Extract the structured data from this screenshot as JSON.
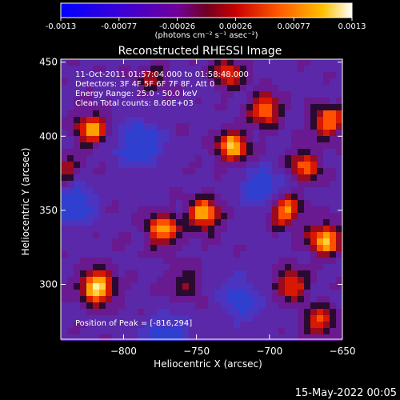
{
  "colorbar": {
    "ticks": [
      "-0.0013",
      "-0.00077",
      "-0.00026",
      "0.00026",
      "0.00077",
      "0.0013"
    ],
    "units": "(photons cm⁻² s⁻¹ asec⁻²)"
  },
  "title": "Reconstructed RHESSI Image",
  "info": {
    "line1": "11-Oct-2011 01:57:04.000 to 01:58:48.000",
    "line2": "Detectors: 3F 4F 5F 6F 7F 8F, Att 0",
    "line3": "Energy Range: 25.0 - 50.0 keV",
    "line4": "Clean    Total counts: 8.60E+03"
  },
  "peak_label": "Position of Peak = [-816,294]",
  "axes": {
    "xlabel": "Heliocentric X (arcsec)",
    "ylabel": "Heliocentric Y (arcsec)",
    "xticks": [
      -800,
      -750,
      -700,
      -650
    ],
    "yticks": [
      300,
      350,
      400,
      450
    ],
    "xlim": [
      -843,
      -650
    ],
    "ylim": [
      263,
      452
    ]
  },
  "hotspots": [
    {
      "x": -818,
      "y": 298,
      "amp": 1.0
    },
    {
      "x": -822,
      "y": 405,
      "amp": 0.75
    },
    {
      "x": -725,
      "y": 393,
      "amp": 0.85
    },
    {
      "x": -703,
      "y": 418,
      "amp": 0.7
    },
    {
      "x": -773,
      "y": 337,
      "amp": 0.8
    },
    {
      "x": -745,
      "y": 347,
      "amp": 0.8
    },
    {
      "x": -690,
      "y": 350,
      "amp": 0.75
    },
    {
      "x": -676,
      "y": 380,
      "amp": 0.6
    },
    {
      "x": -660,
      "y": 410,
      "amp": 0.7
    },
    {
      "x": -662,
      "y": 330,
      "amp": 0.85
    },
    {
      "x": -685,
      "y": 300,
      "amp": 0.6
    },
    {
      "x": -728,
      "y": 443,
      "amp": 0.55
    },
    {
      "x": -840,
      "y": 375,
      "amp": 0.45
    },
    {
      "x": -665,
      "y": 275,
      "amp": 0.6
    },
    {
      "x": -780,
      "y": 440,
      "amp": 0.35
    },
    {
      "x": -758,
      "y": 300,
      "amp": 0.35
    }
  ],
  "coldspots": [
    {
      "x": -790,
      "y": 395,
      "amp": 0.8
    },
    {
      "x": -835,
      "y": 355,
      "amp": 0.7
    },
    {
      "x": -705,
      "y": 365,
      "amp": 0.6
    },
    {
      "x": -770,
      "y": 265,
      "amp": 0.55
    },
    {
      "x": -720,
      "y": 290,
      "amp": 0.5
    }
  ],
  "footer_date": "15-May-2022 00:05"
}
